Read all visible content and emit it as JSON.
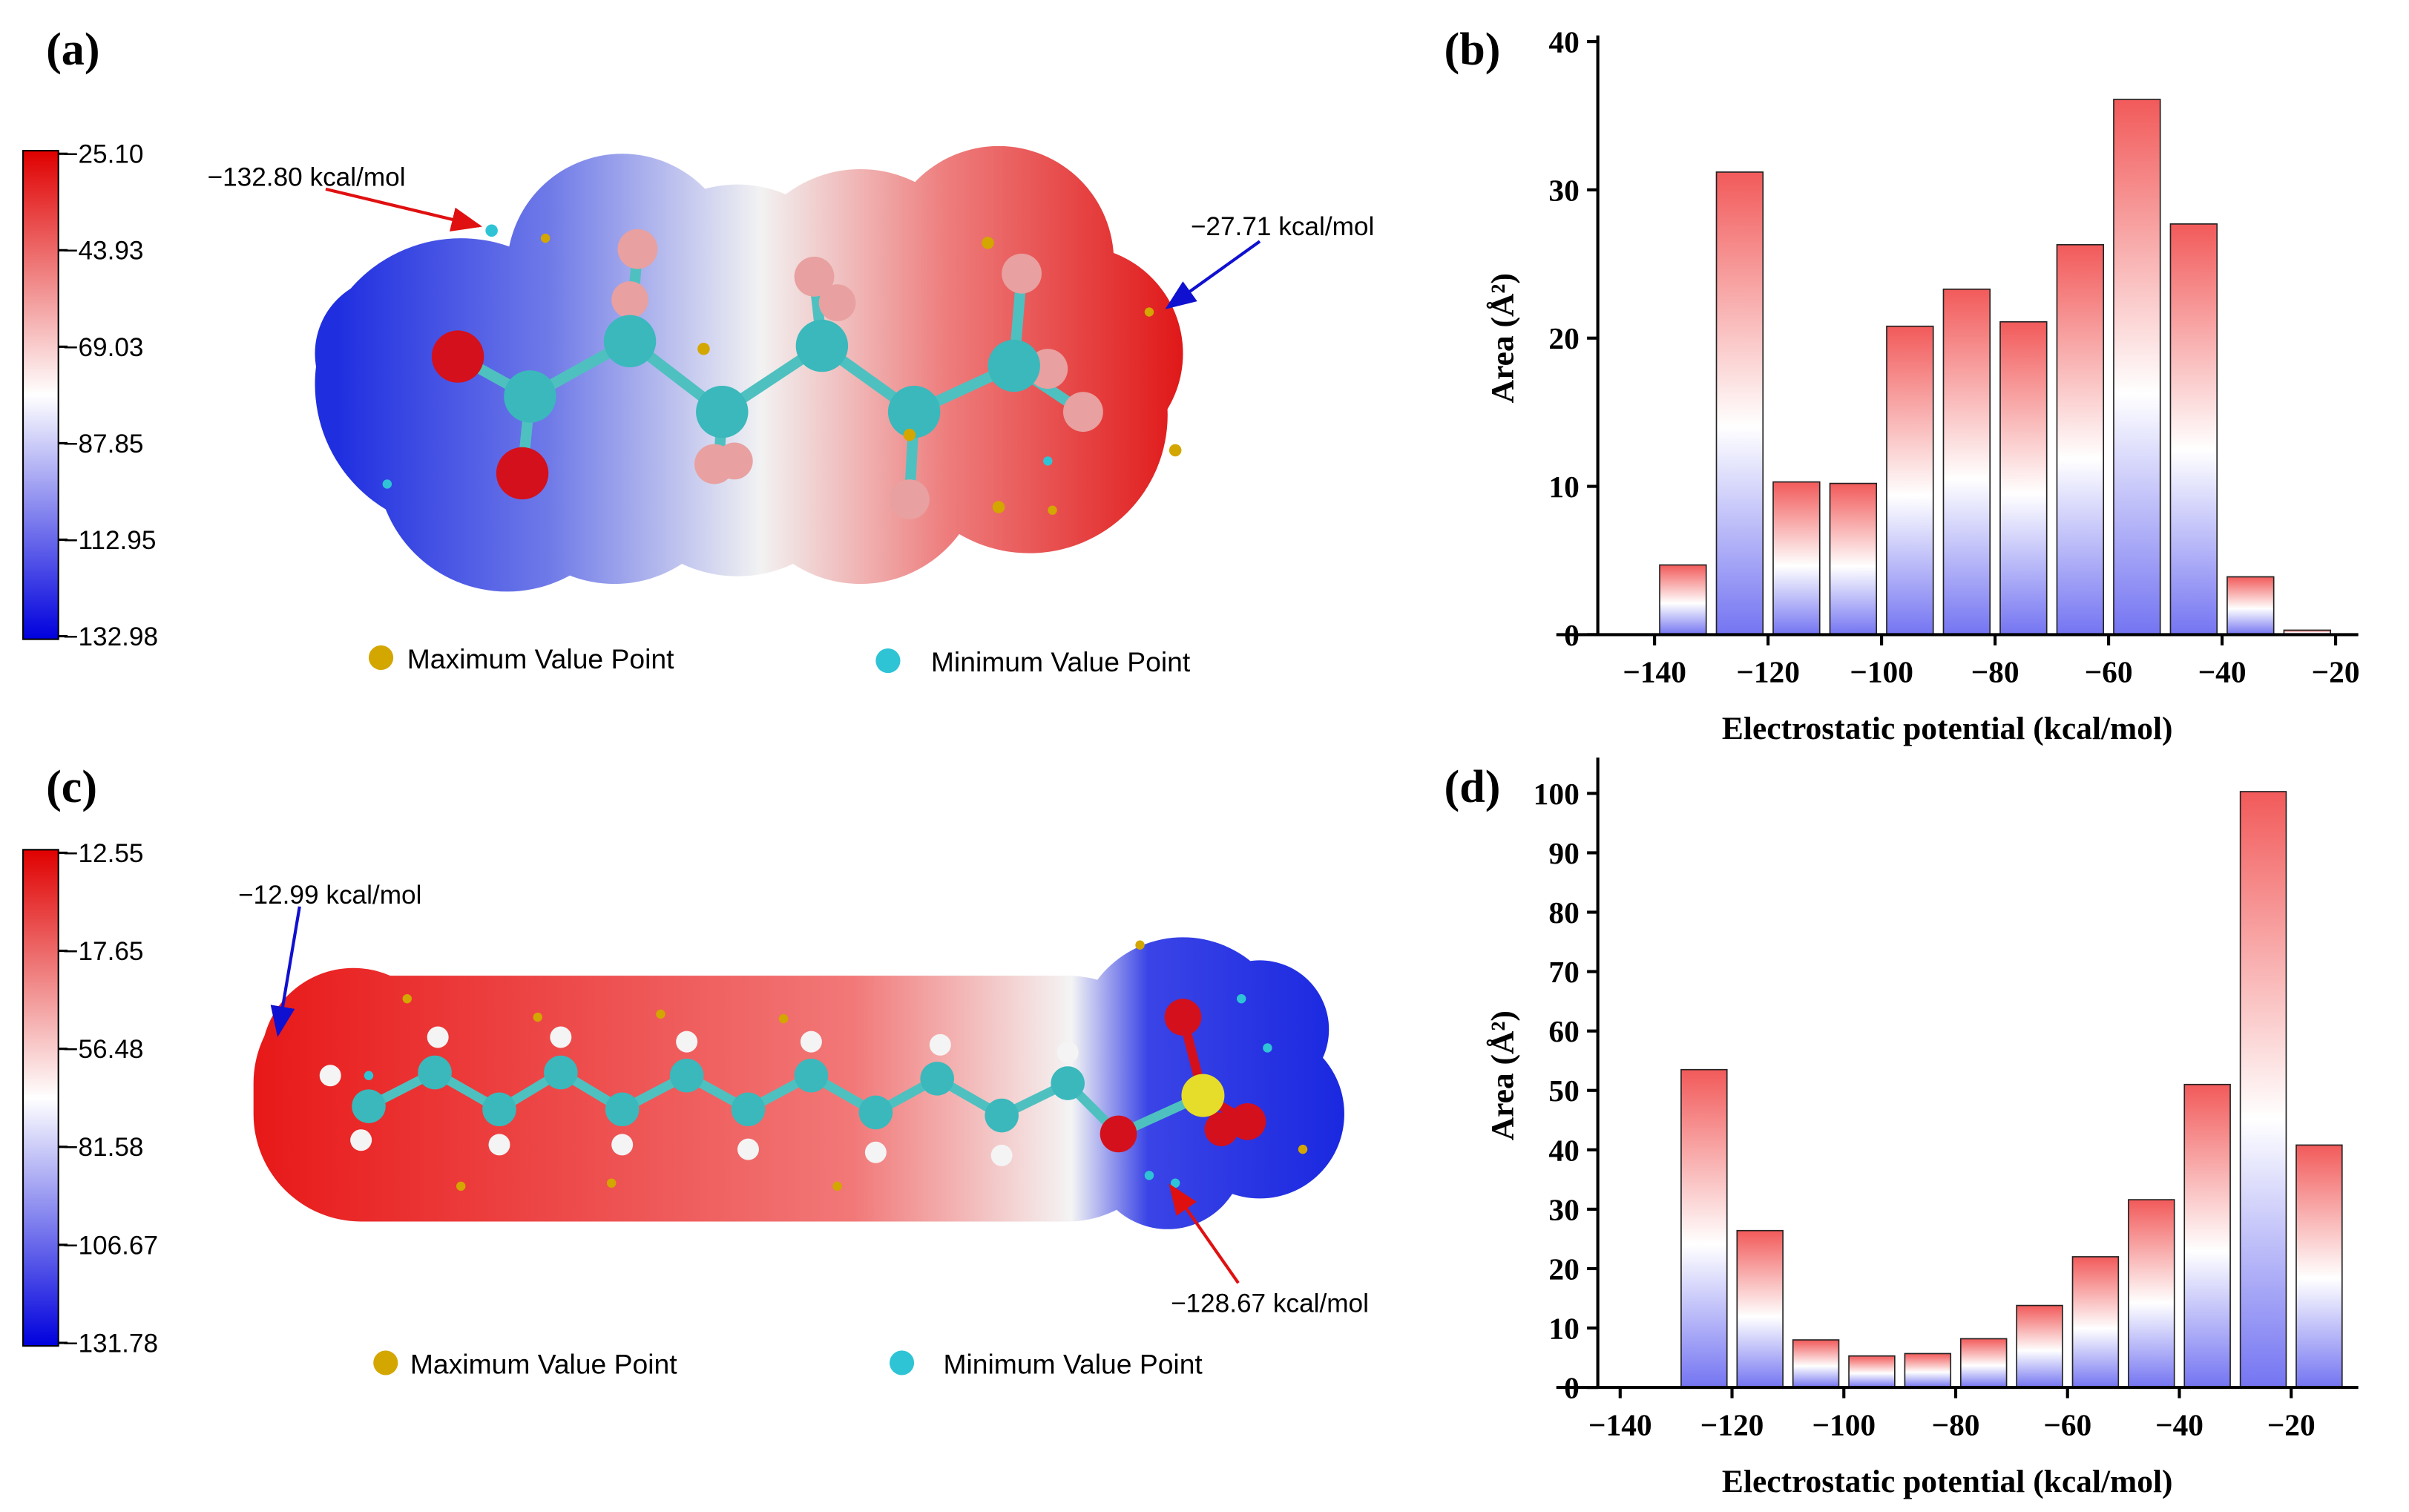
{
  "chart_data": [
    {
      "type": "histogram",
      "panel": "(b)",
      "xlabel": "Electrostatic potential (kcal/mol)",
      "ylabel": "Area (Å²)",
      "bins": [
        -140,
        -130,
        -120,
        -110,
        -100,
        -90,
        -80,
        -70,
        -60,
        -50,
        -40,
        -30,
        -20
      ],
      "values": [
        4.7,
        31.2,
        10.3,
        10.2,
        20.8,
        23.3,
        21.1,
        26.3,
        36.1,
        27.7,
        3.9,
        0.3
      ],
      "xlim": [
        -150,
        -16
      ],
      "ylim": [
        0,
        40
      ],
      "xticks": [
        {
          "value": -140,
          "label": "−140"
        },
        {
          "value": -120,
          "label": "−120"
        },
        {
          "value": -100,
          "label": "−100"
        },
        {
          "value": -80,
          "label": "−80"
        },
        {
          "value": -60,
          "label": "−60"
        },
        {
          "value": -40,
          "label": "−40"
        },
        {
          "value": -20,
          "label": "−20"
        }
      ],
      "yticks": [
        0,
        10,
        20,
        30,
        40
      ],
      "colors": [
        "#f25a5a",
        "#ffffff",
        "#7474f2"
      ]
    },
    {
      "type": "histogram",
      "panel": "(d)",
      "xlabel": "Electrostatic potential (kcal/mol)",
      "ylabel": "Area (Å²)",
      "bins": [
        -130,
        -120,
        -110,
        -100,
        -90,
        -80,
        -70,
        -60,
        -50,
        -40,
        -30,
        -20,
        -10
      ],
      "values": [
        53.5,
        26.4,
        8.0,
        5.3,
        5.7,
        8.2,
        13.8,
        22.0,
        31.6,
        51.0,
        100.3,
        40.8
      ],
      "xlim": [
        -144,
        -8
      ],
      "ylim": [
        0,
        105
      ],
      "xticks": [
        {
          "value": -140,
          "label": "−140"
        },
        {
          "value": -120,
          "label": "−120"
        },
        {
          "value": -100,
          "label": "−100"
        },
        {
          "value": -80,
          "label": "−80"
        },
        {
          "value": -60,
          "label": "−60"
        },
        {
          "value": -40,
          "label": "−40"
        },
        {
          "value": -20,
          "label": "−20"
        }
      ],
      "yticks": [
        0,
        10,
        20,
        30,
        40,
        50,
        60,
        70,
        80,
        90,
        100
      ],
      "colors": [
        "#f25a5a",
        "#ffffff",
        "#7474f2"
      ]
    }
  ],
  "molecules": [
    {
      "panel": "(a)",
      "colorbar": {
        "colors": [
          "#e00000",
          "#ffffff",
          "#0000dd"
        ],
        "ticks": [
          {
            "value": -25.1,
            "label": "−25.10"
          },
          {
            "value": -43.93,
            "label": "−43.93"
          },
          {
            "value": -69.03,
            "label": "−69.03"
          },
          {
            "value": -87.85,
            "label": "−87.85"
          },
          {
            "value": -112.95,
            "label": "−112.95"
          },
          {
            "value": -132.98,
            "label": "−132.98"
          }
        ]
      },
      "annotations": [
        "−132.80  kcal/mol",
        "−27.71  kcal/mol"
      ],
      "legend": [
        "Maximum Value Point",
        "Minimum Value Point"
      ],
      "legend_colors": [
        "#d4a600",
        "#2ec4d6"
      ]
    },
    {
      "panel": "(c)",
      "colorbar": {
        "colors": [
          "#e00000",
          "#ffffff",
          "#0000dd"
        ],
        "ticks": [
          {
            "value": -12.55,
            "label": "−12.55"
          },
          {
            "value": -17.65,
            "label": "−17.65"
          },
          {
            "value": -56.48,
            "label": "−56.48"
          },
          {
            "value": -81.58,
            "label": "−81.58"
          },
          {
            "value": -106.67,
            "label": "−106.67"
          },
          {
            "value": -131.78,
            "label": "−131.78"
          }
        ]
      },
      "annotations": [
        "−12.99  kcal/mol",
        "−128.67  kcal/mol"
      ],
      "legend": [
        "Maximum Value Point",
        "Minimum Value Point"
      ],
      "legend_colors": [
        "#d4a600",
        "#2ec4d6"
      ]
    }
  ]
}
